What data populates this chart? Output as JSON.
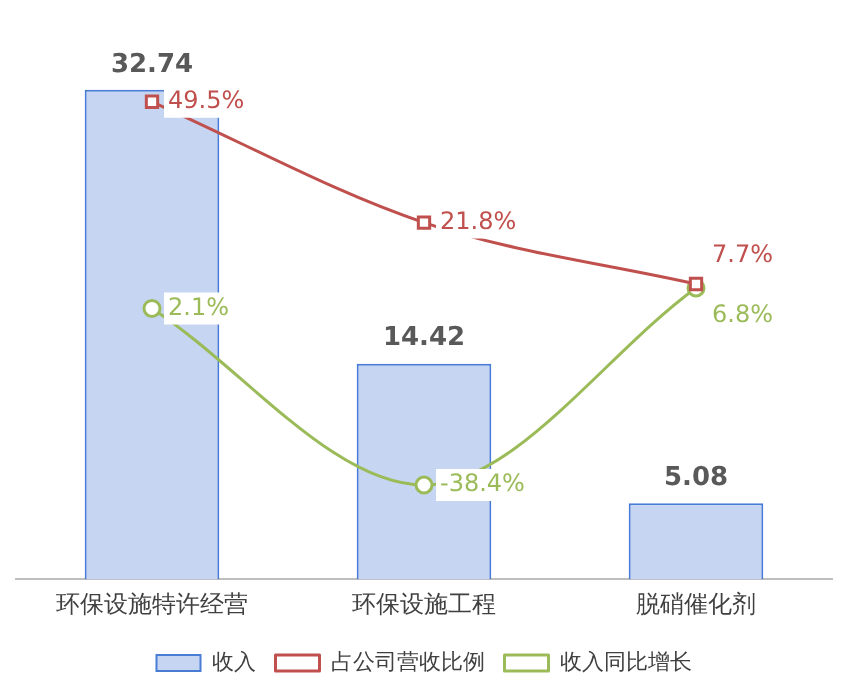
{
  "chart_data": {
    "type": "bar",
    "categories": [
      "环保设施特许经营",
      "环保设施工程",
      "脱硝催化剂"
    ],
    "legend": "bottom",
    "grid": false,
    "series": [
      {
        "name": "收入",
        "color": "#c6d6f2",
        "values": [
          32.74,
          14.42,
          5.08
        ],
        "value_labels": [
          "32.74",
          "14.42",
          "5.08"
        ]
      },
      {
        "name": "占公司营收比例",
        "type": "line",
        "axis": "y2",
        "color": "#c0504d",
        "marker": "square",
        "values": [
          49.5,
          21.8,
          7.7
        ],
        "value_labels": [
          "49.5%",
          "21.8%",
          "7.7%"
        ]
      },
      {
        "name": "收入同比增长",
        "type": "line",
        "axis": "y2",
        "color": "#9bbb59",
        "marker": "circle",
        "values": [
          2.1,
          -38.4,
          6.8
        ],
        "value_labels": [
          "2.1%",
          "-38.4%",
          "6.8%"
        ]
      }
    ]
  }
}
